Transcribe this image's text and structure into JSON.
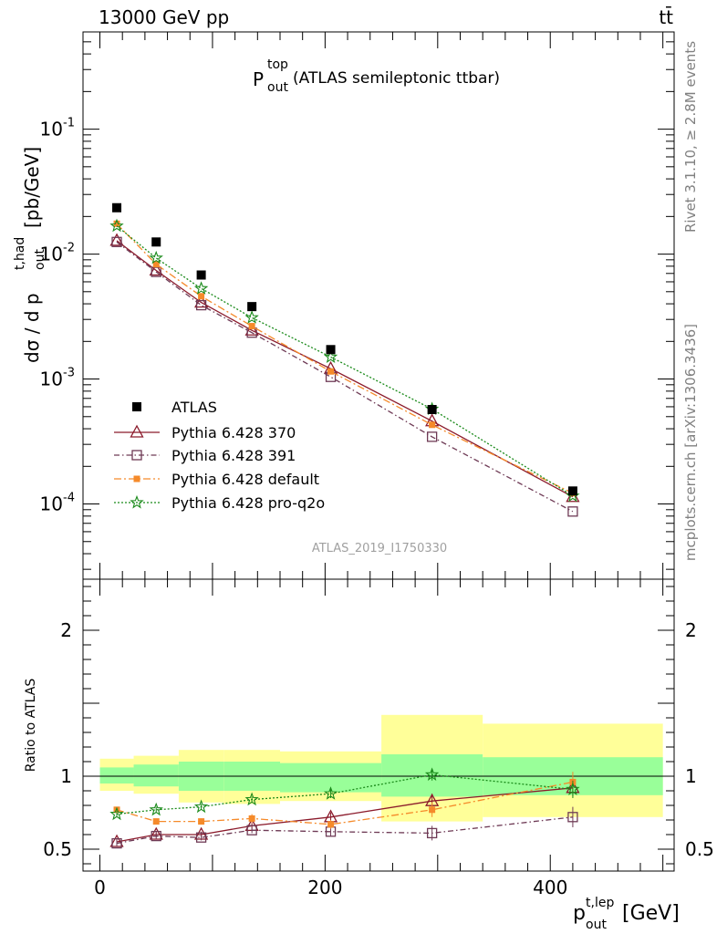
{
  "header": {
    "left": "13000 GeV pp",
    "right": "tt̄"
  },
  "side_labels": {
    "rivet": "Rivet 3.1.10, ≥ 2.8M events",
    "mcplots": "mcplots.cern.ch [arXiv:1306.3436]"
  },
  "watermark": "ATLAS_2019_I1750330",
  "chart_data": {
    "type": "line",
    "title": {
      "main": "P",
      "sup": "top",
      "sub": "out",
      "rest": "(ATLAS semileptonic ttbar)"
    },
    "ylabel_main": {
      "text": "dσ / d p",
      "sup": "t,had",
      "sub": "out",
      "unit": "[pb/GeV]"
    },
    "ylabel_ratio": "Ratio to ATLAS",
    "xlabel": {
      "text": "p",
      "sup": "t,lep",
      "sub": "out",
      "unit": "[GeV]"
    },
    "xlim": [
      -15,
      510
    ],
    "ylim_main": [
      2.5e-05,
      0.6
    ],
    "ylim_ratio": [
      0.35,
      2.35
    ],
    "y_scale_main": "log",
    "x_ticks": [
      0,
      200,
      400
    ],
    "y_ticks_main": [
      "10^-4",
      "10^-3",
      "10^-2",
      "10^-1"
    ],
    "y_ticks_ratio": [
      0.5,
      1,
      2
    ],
    "bins": [
      {
        "lo": 0,
        "hi": 30,
        "x": 15
      },
      {
        "lo": 30,
        "hi": 70,
        "x": 50
      },
      {
        "lo": 70,
        "hi": 110,
        "x": 90
      },
      {
        "lo": 110,
        "hi": 160,
        "x": 135
      },
      {
        "lo": 160,
        "hi": 250,
        "x": 205
      },
      {
        "lo": 250,
        "hi": 340,
        "x": 295
      },
      {
        "lo": 340,
        "hi": 500,
        "x": 420
      }
    ],
    "data": {
      "name": "ATLAS",
      "values": [
        0.0235,
        0.0125,
        0.0068,
        0.0038,
        0.00172,
        0.00057,
        0.000127
      ]
    },
    "band_green": [
      [
        0.95,
        1.06
      ],
      [
        0.93,
        1.08
      ],
      [
        0.9,
        1.1
      ],
      [
        0.9,
        1.1
      ],
      [
        0.89,
        1.09
      ],
      [
        0.86,
        1.15
      ],
      [
        0.87,
        1.13
      ]
    ],
    "band_yellow": [
      [
        0.9,
        1.12
      ],
      [
        0.88,
        1.14
      ],
      [
        0.82,
        1.18
      ],
      [
        0.81,
        1.18
      ],
      [
        0.83,
        1.17
      ],
      [
        0.69,
        1.42
      ],
      [
        0.72,
        1.36
      ]
    ],
    "series": [
      {
        "name": "Pythia 6.428 370",
        "color": "#8b1a2b",
        "marker": "triangle",
        "dash": "",
        "values": [
          0.0128,
          0.0074,
          0.0041,
          0.00245,
          0.00121,
          0.00046,
          0.000114
        ],
        "ratio": [
          0.55,
          0.6,
          0.6,
          0.66,
          0.72,
          0.83,
          0.92
        ],
        "ratio_err": [
          0.02,
          0.02,
          0.02,
          0.02,
          0.03,
          0.05,
          0.06
        ]
      },
      {
        "name": "Pythia 6.428 391",
        "color": "#6e3a55",
        "marker": "square-open",
        "dash": "6,3,1.5,3",
        "values": [
          0.0125,
          0.0072,
          0.0039,
          0.00235,
          0.00104,
          0.000345,
          8.7e-05
        ],
        "ratio": [
          0.54,
          0.59,
          0.58,
          0.63,
          0.62,
          0.61,
          0.72
        ],
        "ratio_err": [
          0.02,
          0.02,
          0.02,
          0.02,
          0.03,
          0.05,
          0.07
        ]
      },
      {
        "name": "Pythia 6.428 default",
        "color": "#f58a2a",
        "marker": "square-filled",
        "dash": "8,3,2,3",
        "values": [
          0.0175,
          0.0083,
          0.0046,
          0.00265,
          0.00115,
          0.00043,
          0.000122
        ],
        "ratio": [
          0.77,
          0.69,
          0.69,
          0.71,
          0.67,
          0.77,
          0.96
        ],
        "ratio_err": [
          0.02,
          0.02,
          0.02,
          0.03,
          0.03,
          0.05,
          0.07
        ]
      },
      {
        "name": "Pythia 6.428 pro-q2o",
        "color": "#1a8a1a",
        "marker": "star",
        "dash": "2,2",
        "values": [
          0.0168,
          0.0093,
          0.0053,
          0.0031,
          0.0015,
          0.000575,
          0.000116
        ],
        "ratio": [
          0.74,
          0.77,
          0.79,
          0.84,
          0.88,
          1.01,
          0.91
        ],
        "ratio_err": [
          0.02,
          0.02,
          0.02,
          0.02,
          0.03,
          0.04,
          0.06
        ]
      }
    ],
    "legend_placement": "lower-left"
  }
}
